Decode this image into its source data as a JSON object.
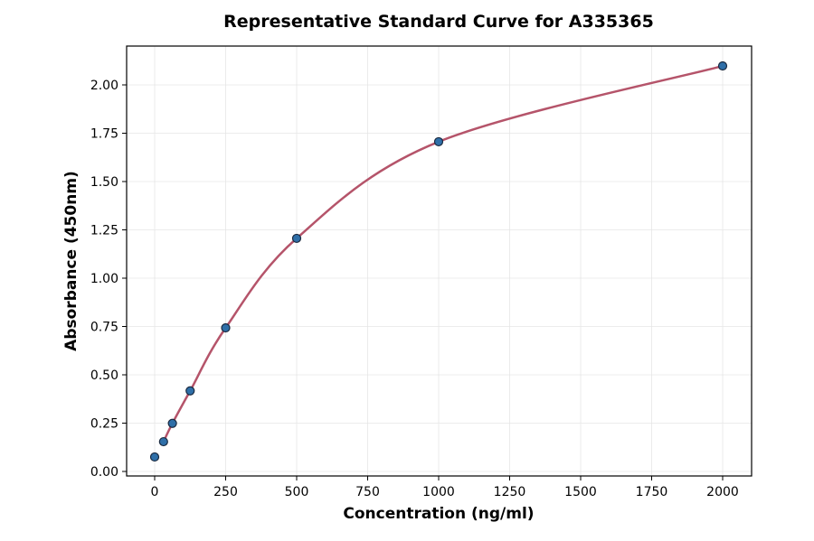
{
  "chart_data": {
    "type": "scatter",
    "title": "Representative Standard Curve for A335365",
    "xlabel": "Concentration (ng/ml)",
    "ylabel": "Absorbance (450nm)",
    "xlim": [
      -100,
      2100
    ],
    "ylim": [
      -0.02,
      2.2
    ],
    "xticks": [
      0,
      250,
      500,
      750,
      1000,
      1250,
      1500,
      1750,
      2000
    ],
    "yticks": [
      0.0,
      0.25,
      0.5,
      0.75,
      1.0,
      1.25,
      1.5,
      1.75,
      2.0
    ],
    "grid": true,
    "points": [
      {
        "x": 0,
        "y": 0.075
      },
      {
        "x": 31.25,
        "y": 0.154
      },
      {
        "x": 62.5,
        "y": 0.249
      },
      {
        "x": 125,
        "y": 0.417
      },
      {
        "x": 250,
        "y": 0.743
      },
      {
        "x": 500,
        "y": 1.206
      },
      {
        "x": 1000,
        "y": 1.706
      },
      {
        "x": 2000,
        "y": 2.098
      }
    ],
    "fit_curve_range": [
      31.25,
      2000
    ],
    "colors": {
      "points": "#2f6fa8",
      "point_edge": "#1a2a40",
      "curve": "#b5546a",
      "grid": "#e6e6e6"
    }
  }
}
